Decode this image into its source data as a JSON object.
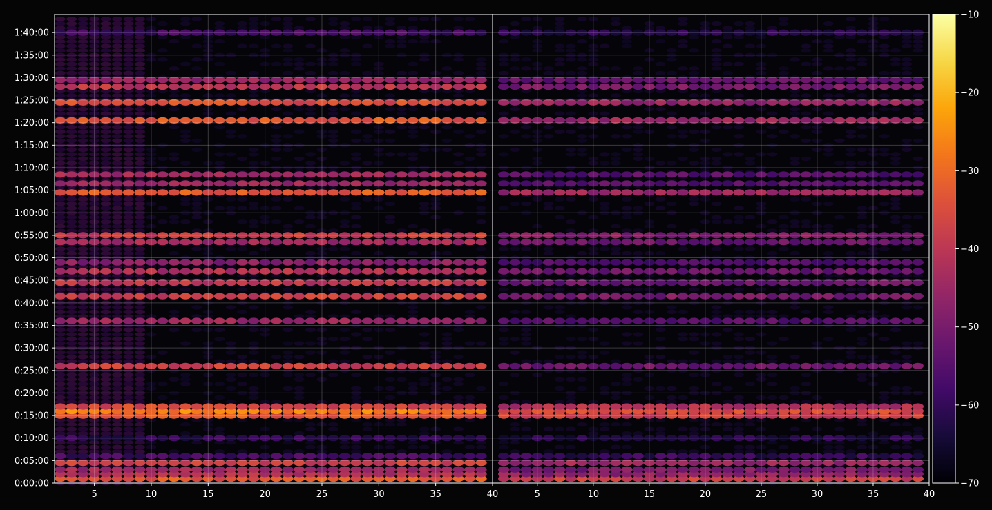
{
  "chart_data": {
    "type": "heatmap",
    "title": "",
    "xlabel": "",
    "ylabel": "",
    "panels": [
      {
        "name": "",
        "xlim": [
          1.5,
          40
        ],
        "xticks": [
          5,
          10,
          15,
          20,
          25,
          30,
          35,
          40
        ]
      },
      {
        "name": "",
        "xlim": [
          1,
          40
        ],
        "xticks": [
          5,
          10,
          15,
          20,
          25,
          30,
          35,
          40
        ]
      }
    ],
    "y_range_seconds": [
      0,
      6240
    ],
    "y_tick_labels": [
      "0:00:00",
      "0:05:00",
      "0:10:00",
      "0:15:00",
      "0:20:00",
      "0:25:00",
      "0:30:00",
      "0:35:00",
      "0:40:00",
      "0:45:00",
      "0:50:00",
      "0:55:00",
      "1:00:00",
      "1:05:00",
      "1:10:00",
      "1:15:00",
      "1:20:00",
      "1:25:00",
      "1:30:00",
      "1:35:00",
      "1:40:00"
    ],
    "grid": true,
    "colormap": "inferno",
    "colorbar": {
      "min": -70,
      "max": -10,
      "ticks": [
        -10,
        -20,
        -30,
        -40,
        -50,
        -60,
        -70
      ]
    },
    "bands": [
      {
        "time": "0:01:00",
        "panel_1_level": -33,
        "panel_2_level": -38
      },
      {
        "time": "0:02:00",
        "panel_1_level": -42,
        "panel_2_level": -47
      },
      {
        "time": "0:03:00",
        "panel_1_level": -45,
        "panel_2_level": -50
      },
      {
        "time": "0:04:30",
        "panel_1_level": -38,
        "panel_2_level": -45
      },
      {
        "time": "0:06:00",
        "panel_1_level": -58,
        "panel_2_level": -60
      },
      {
        "time": "0:10:00",
        "panel_1_level": -60,
        "panel_2_level": -62
      },
      {
        "time": "0:15:00",
        "panel_1_level": -33,
        "panel_2_level": -38
      },
      {
        "time": "0:16:00",
        "panel_1_level": -27,
        "panel_2_level": -35
      },
      {
        "time": "0:17:00",
        "panel_1_level": -36,
        "panel_2_level": -42
      },
      {
        "time": "0:26:00",
        "panel_1_level": -38,
        "panel_2_level": -52
      },
      {
        "time": "0:36:00",
        "panel_1_level": -45,
        "panel_2_level": -55
      },
      {
        "time": "0:41:30",
        "panel_1_level": -38,
        "panel_2_level": -50
      },
      {
        "time": "0:44:30",
        "panel_1_level": -40,
        "panel_2_level": -52
      },
      {
        "time": "0:47:00",
        "panel_1_level": -42,
        "panel_2_level": -52
      },
      {
        "time": "0:49:00",
        "panel_1_level": -48,
        "panel_2_level": -56
      },
      {
        "time": "0:53:30",
        "panel_1_level": -44,
        "panel_2_level": -52
      },
      {
        "time": "0:55:00",
        "panel_1_level": -38,
        "panel_2_level": -48
      },
      {
        "time": "1:04:30",
        "panel_1_level": -33,
        "panel_2_level": -45
      },
      {
        "time": "1:06:30",
        "panel_1_level": -45,
        "panel_2_level": -55
      },
      {
        "time": "1:08:30",
        "panel_1_level": -44,
        "panel_2_level": -55
      },
      {
        "time": "1:20:30",
        "panel_1_level": -33,
        "panel_2_level": -45
      },
      {
        "time": "1:24:30",
        "panel_1_level": -35,
        "panel_2_level": -46
      },
      {
        "time": "1:28:00",
        "panel_1_level": -40,
        "panel_2_level": -50
      },
      {
        "time": "1:29:30",
        "panel_1_level": -46,
        "panel_2_level": -53
      },
      {
        "time": "1:40:00",
        "panel_1_level": -58,
        "panel_2_level": -62
      }
    ]
  }
}
